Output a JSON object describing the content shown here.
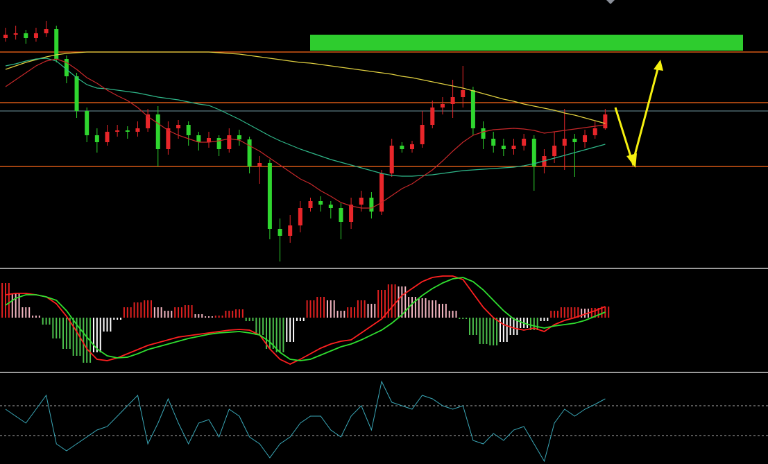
{
  "chart_data": [
    {
      "type": "candlestick",
      "ylim": [
        0,
        385
      ],
      "up_color": "#e8262a",
      "down_color": "#2fd62f",
      "open": [
        330,
        335,
        337,
        330,
        337,
        343,
        300,
        275,
        225,
        190,
        180,
        195,
        197,
        195,
        200,
        220,
        170,
        200,
        205,
        190,
        180,
        186,
        170,
        190,
        184,
        145,
        150,
        55,
        45,
        60,
        85,
        95,
        90,
        85,
        65,
        90,
        100,
        80,
        135,
        175,
        170,
        177,
        205,
        230,
        235,
        245,
        255,
        200,
        185,
        175,
        170,
        175,
        185,
        145,
        160,
        175,
        185,
        180,
        190,
        200
      ],
      "high": [
        345,
        348,
        342,
        345,
        355,
        348,
        305,
        280,
        230,
        200,
        205,
        205,
        203,
        210,
        228,
        232,
        210,
        212,
        210,
        195,
        195,
        190,
        200,
        198,
        188,
        160,
        155,
        70,
        75,
        95,
        100,
        102,
        95,
        92,
        100,
        110,
        108,
        140,
        185,
        180,
        182,
        225,
        240,
        245,
        270,
        290,
        260,
        210,
        195,
        185,
        185,
        192,
        190,
        170,
        195,
        228,
        192,
        198,
        210,
        228
      ],
      "low": [
        325,
        328,
        322,
        325,
        332,
        295,
        265,
        215,
        180,
        165,
        175,
        188,
        185,
        188,
        195,
        145,
        162,
        185,
        175,
        168,
        172,
        160,
        165,
        175,
        135,
        120,
        40,
        8,
        35,
        50,
        80,
        80,
        70,
        40,
        55,
        80,
        70,
        75,
        130,
        165,
        165,
        172,
        200,
        220,
        215,
        230,
        190,
        170,
        165,
        160,
        162,
        168,
        110,
        135,
        150,
        140,
        130,
        172,
        185,
        198
      ],
      "close": [
        335,
        337,
        330,
        337,
        343,
        300,
        275,
        225,
        190,
        180,
        195,
        197,
        195,
        200,
        220,
        170,
        200,
        205,
        190,
        180,
        186,
        170,
        190,
        184,
        145,
        150,
        55,
        45,
        60,
        85,
        95,
        90,
        85,
        65,
        90,
        100,
        80,
        135,
        175,
        170,
        177,
        205,
        230,
        235,
        245,
        255,
        200,
        185,
        175,
        170,
        175,
        185,
        145,
        160,
        175,
        185,
        180,
        190,
        200,
        220
      ],
      "series": [
        {
          "color": "#e0d040",
          "values": [
            285,
            290,
            295,
            299,
            303,
            306,
            308,
            309,
            310,
            310,
            310,
            310,
            310,
            310,
            310,
            310,
            310,
            310,
            310,
            310,
            310,
            309,
            308,
            307,
            305,
            303,
            301,
            299,
            297,
            295,
            294,
            292,
            290,
            288,
            286,
            284,
            282,
            280,
            278,
            275,
            273,
            270,
            267,
            264,
            261,
            258,
            254,
            250,
            246,
            242,
            239,
            235,
            232,
            229,
            226,
            222,
            219,
            215,
            211,
            207
          ]
        },
        {
          "color": "#2fb88a",
          "values": [
            290,
            293,
            297,
            300,
            301,
            297,
            285,
            273,
            263,
            258,
            257,
            255,
            253,
            251,
            248,
            245,
            243,
            241,
            238,
            235,
            233,
            227,
            220,
            213,
            205,
            197,
            189,
            182,
            176,
            170,
            165,
            160,
            155,
            151,
            147,
            143,
            139,
            135,
            132,
            131,
            131,
            132,
            133,
            135,
            137,
            139,
            140,
            141,
            142,
            143,
            144,
            146,
            149,
            153,
            157,
            161,
            165,
            169,
            173,
            177
          ]
        },
        {
          "color": "#c8282a",
          "values": [
            260,
            270,
            280,
            290,
            297,
            300,
            295,
            285,
            273,
            265,
            255,
            247,
            240,
            230,
            217,
            207,
            197,
            190,
            185,
            180,
            180,
            182,
            185,
            183,
            175,
            167,
            157,
            147,
            137,
            127,
            120,
            110,
            102,
            93,
            88,
            85,
            85,
            93,
            103,
            113,
            120,
            130,
            140,
            153,
            167,
            180,
            190,
            195,
            198,
            199,
            200,
            199,
            197,
            193,
            195,
            197,
            199,
            201,
            203,
            205
          ]
        }
      ],
      "levels": [
        {
          "value": 310,
          "color": "#ff6a1a"
        },
        {
          "value": 237,
          "color": "#ff6a1a"
        },
        {
          "value": 225,
          "color": "#5a7a80"
        },
        {
          "value": 145,
          "color": "#ff6a1a"
        }
      ]
    },
    {
      "type": "macd",
      "ylim": [
        -77,
        68
      ],
      "colors": {
        "rise_pos": "#e02020",
        "fall_pos": "#f4b6c2",
        "fall_neg": "#4cc04c",
        "rise_neg": "#ffffff"
      },
      "values": [
        50,
        35,
        15,
        3,
        -10,
        -30,
        -45,
        -55,
        -65,
        -50,
        -20,
        -3,
        15,
        22,
        25,
        15,
        10,
        15,
        18,
        5,
        2,
        3,
        10,
        12,
        -5,
        -25,
        -45,
        -50,
        -35,
        -5,
        25,
        30,
        25,
        10,
        15,
        25,
        20,
        40,
        48,
        45,
        30,
        28,
        25,
        20,
        10,
        -2,
        -25,
        -38,
        -40,
        -35,
        -25,
        -15,
        -18,
        -5,
        10,
        15,
        15,
        13,
        14,
        16
      ],
      "series": [
        {
          "color": "#ff2020",
          "values": [
            33,
            35,
            35,
            33,
            30,
            20,
            2,
            -20,
            -45,
            -60,
            -62,
            -58,
            -52,
            -46,
            -40,
            -36,
            -32,
            -28,
            -26,
            -24,
            -22,
            -20,
            -18,
            -17,
            -18,
            -25,
            -45,
            -60,
            -67,
            -60,
            -52,
            -44,
            -38,
            -34,
            -32,
            -22,
            -12,
            -2,
            15,
            32,
            42,
            52,
            58,
            60,
            60,
            55,
            35,
            15,
            0,
            -10,
            -15,
            -18,
            -15,
            -20,
            -10,
            -4,
            0,
            5,
            10,
            16
          ]
        },
        {
          "color": "#30e030",
          "values": [
            18,
            28,
            33,
            33,
            30,
            25,
            10,
            -10,
            -28,
            -45,
            -55,
            -58,
            -57,
            -52,
            -46,
            -42,
            -38,
            -34,
            -30,
            -27,
            -24,
            -22,
            -21,
            -20,
            -22,
            -25,
            -35,
            -50,
            -60,
            -62,
            -60,
            -54,
            -48,
            -42,
            -38,
            -32,
            -25,
            -18,
            -8,
            4,
            20,
            32,
            42,
            50,
            56,
            58,
            52,
            40,
            25,
            10,
            -2,
            -8,
            -12,
            -15,
            -12,
            -10,
            -8,
            -4,
            2,
            8
          ]
        }
      ]
    },
    {
      "type": "line",
      "ylim": [
        0,
        129
      ],
      "levels": [
        {
          "value": 84,
          "color": "#888888"
        },
        {
          "value": 41,
          "color": "#888888"
        }
      ],
      "series": [
        {
          "color": "#3aa8b8",
          "values": [
            79,
            69,
            59,
            79,
            99,
            29,
            19,
            29,
            39,
            49,
            54,
            69,
            84,
            99,
            29,
            59,
            94,
            59,
            29,
            59,
            64,
            39,
            79,
            69,
            39,
            29,
            9,
            29,
            39,
            59,
            69,
            69,
            49,
            39,
            69,
            84,
            49,
            119,
            89,
            84,
            79,
            99,
            94,
            84,
            79,
            84,
            34,
            29,
            44,
            34,
            49,
            54,
            29,
            4,
            59,
            79,
            69,
            79,
            86,
            94
          ]
        }
      ]
    }
  ]
}
